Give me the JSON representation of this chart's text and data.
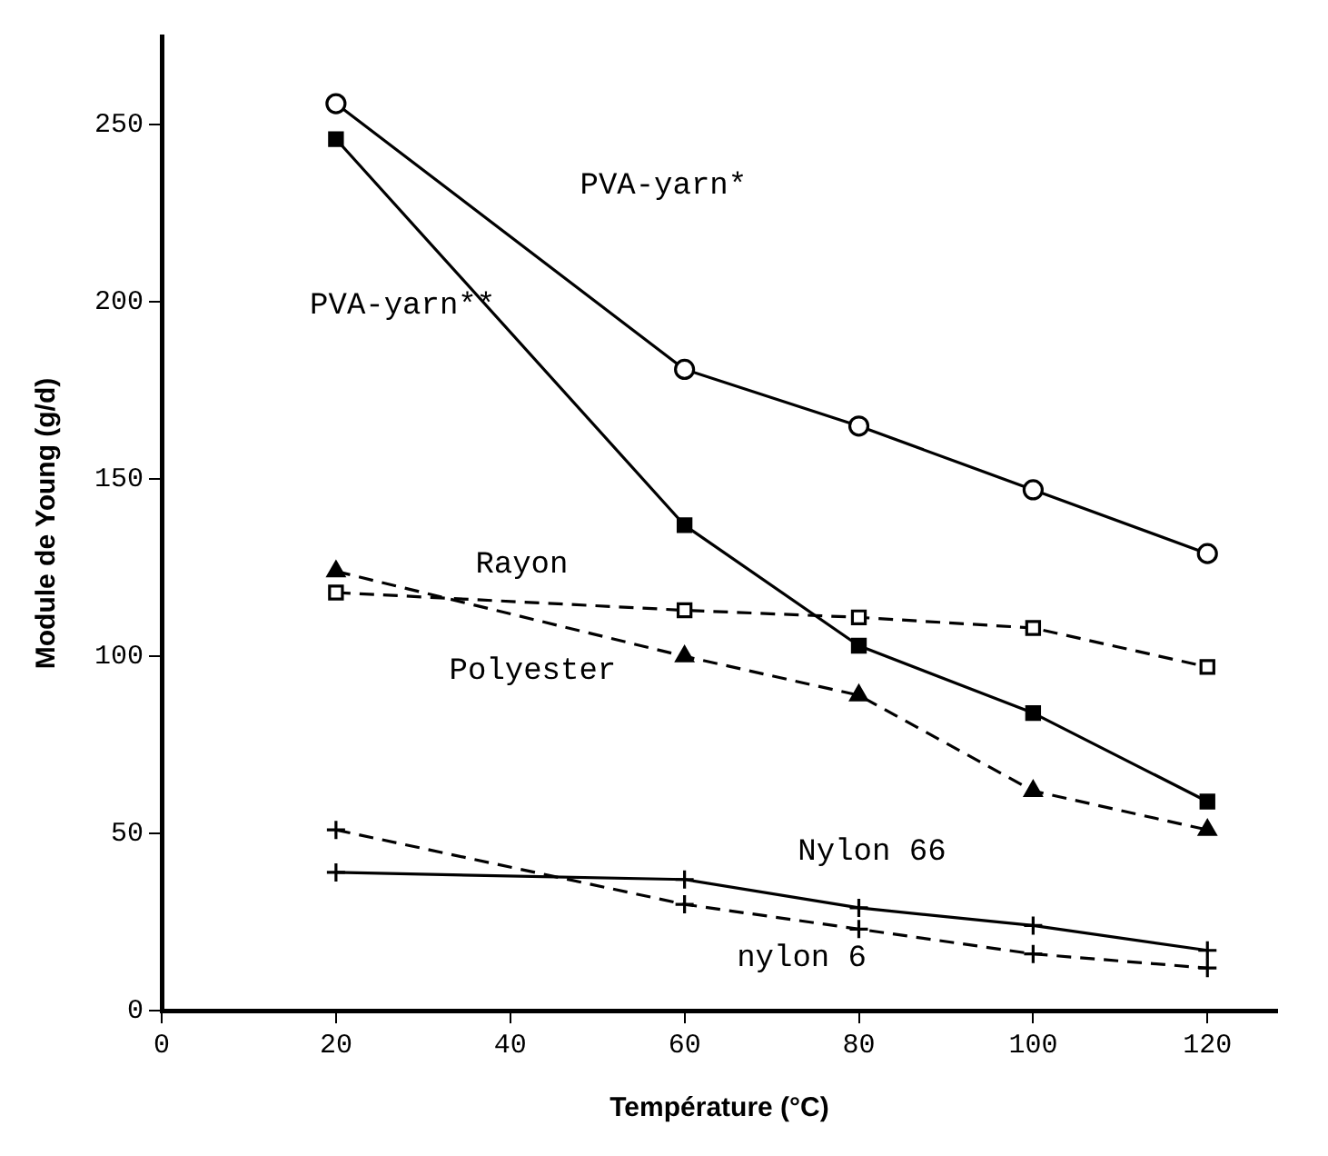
{
  "chart_data": {
    "type": "line",
    "xlabel": "Température (°C)",
    "ylabel": "Module de Young (g/d)",
    "x": [
      20,
      60,
      80,
      100,
      120
    ],
    "xlim": [
      0,
      128
    ],
    "xticks": [
      0,
      20,
      40,
      60,
      80,
      100,
      120
    ],
    "ylim": [
      0,
      275
    ],
    "yticks": [
      0,
      50,
      100,
      150,
      200,
      250
    ],
    "grid": false,
    "legend": false,
    "series": [
      {
        "name": "PVA-yarn*",
        "color": "#000000",
        "marker": "circle",
        "line_style": "solid",
        "values": [
          256,
          181,
          165,
          147,
          129
        ]
      },
      {
        "name": "PVA-yarn**",
        "color": "#000000",
        "marker": "square",
        "line_style": "solid",
        "values": [
          246,
          137,
          103,
          84,
          59
        ]
      },
      {
        "name": "Rayon",
        "color": "#000000",
        "marker": "square",
        "line_style": "dashed",
        "values": [
          118,
          113,
          111,
          108,
          97
        ]
      },
      {
        "name": "Polyester",
        "color": "#000000",
        "marker": "triangle",
        "line_style": "dashed",
        "values": [
          124,
          100,
          89,
          62,
          51
        ]
      },
      {
        "name": "Nylon 66",
        "color": "#000000",
        "marker": "cross",
        "line_style": "solid",
        "values": [
          39,
          37,
          29,
          24,
          17
        ]
      },
      {
        "name": "nylon 6",
        "color": "#000000",
        "marker": "cross",
        "line_style": "dashed",
        "values": [
          51,
          30,
          23,
          16,
          12
        ]
      }
    ]
  }
}
